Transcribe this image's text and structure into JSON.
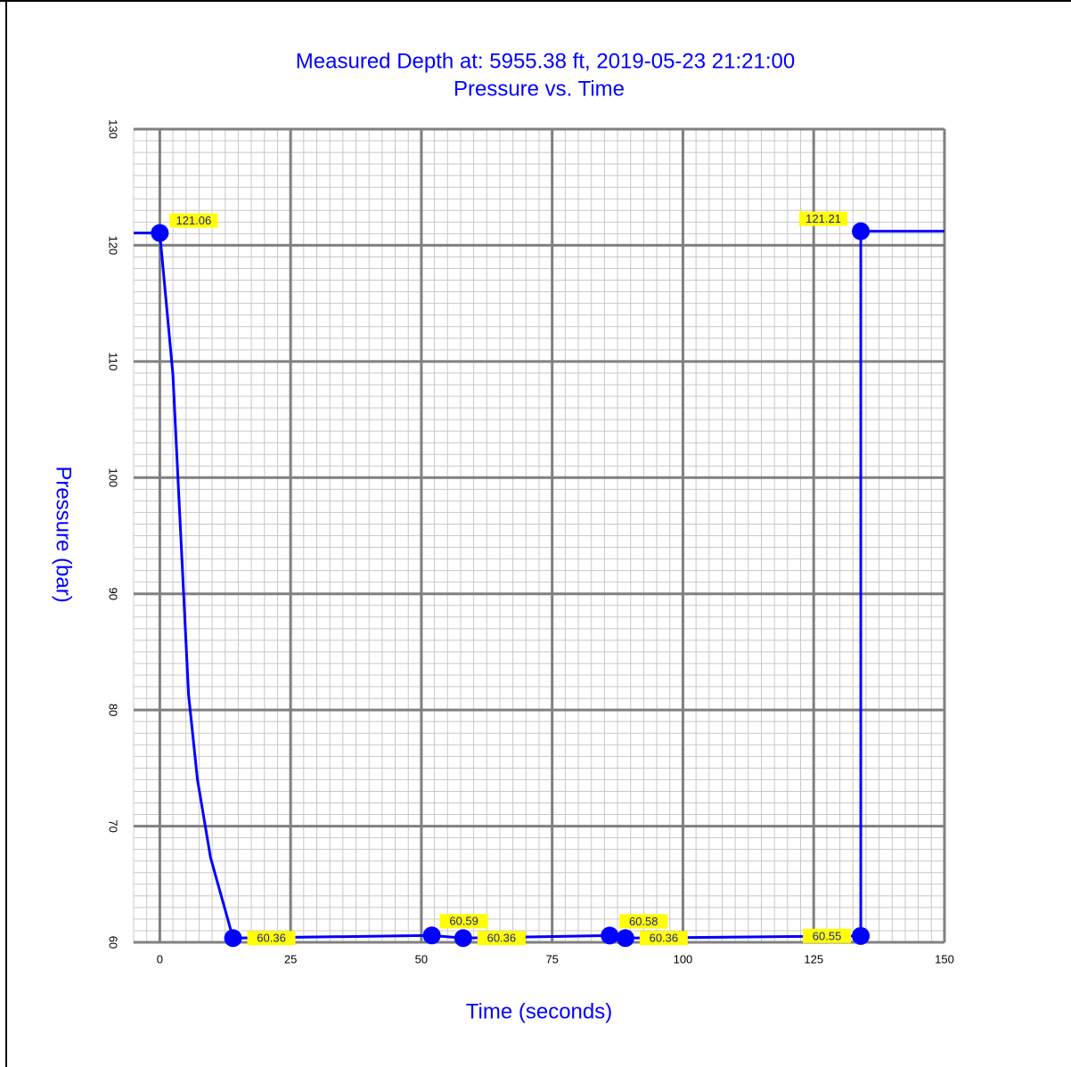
{
  "chart_data": {
    "type": "line",
    "title": "Measured Depth at:  5955.38 ft, 2019-05-23 21:21:00",
    "subtitle": "Pressure vs. Time",
    "x_label": "Time (seconds)",
    "y_label": "Pressure (bar)",
    "xlim": [
      -5,
      150
    ],
    "ylim": [
      60,
      130
    ],
    "xticks": [
      0,
      25,
      50,
      75,
      100,
      125,
      150
    ],
    "yticks": [
      60,
      70,
      80,
      90,
      100,
      110,
      120,
      130
    ],
    "grid": true,
    "color": "#0000ff",
    "line": {
      "x": [
        -5,
        0,
        2.5,
        5.5,
        7.2,
        9.7,
        14,
        52,
        58,
        86,
        89,
        134,
        134,
        150
      ],
      "values": [
        121.06,
        121.06,
        108.9,
        81.3,
        74.0,
        67.3,
        60.36,
        60.59,
        60.36,
        60.58,
        60.36,
        60.55,
        121.21,
        121.21
      ]
    },
    "points": {
      "x": [
        0,
        14,
        52,
        58,
        86,
        89,
        134,
        134
      ],
      "values": [
        121.06,
        60.36,
        60.59,
        60.36,
        60.58,
        60.36,
        60.55,
        121.21
      ]
    }
  }
}
